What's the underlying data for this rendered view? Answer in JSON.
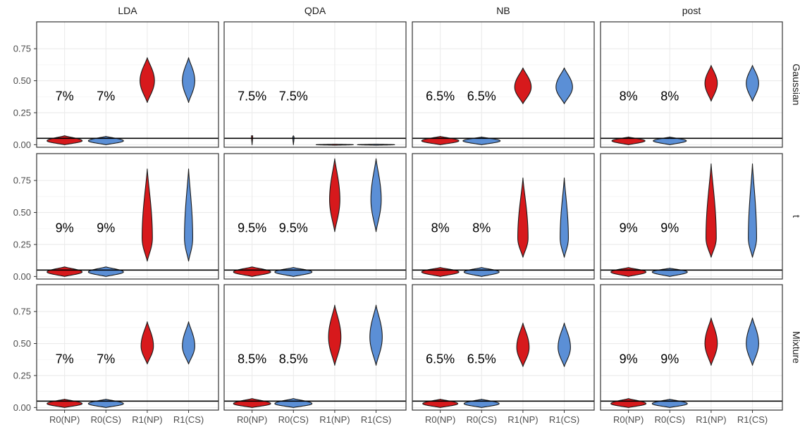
{
  "chart_data": {
    "type": "violin",
    "facet_columns": [
      "LDA",
      "QDA",
      "NB",
      "post"
    ],
    "facet_rows": [
      "Gaussian",
      "t",
      "Mixture"
    ],
    "categories": [
      "R0(NP)",
      "R0(CS)",
      "R1(NP)",
      "R1(CS)"
    ],
    "y_ticks": [
      "0.00",
      "0.25",
      "0.50",
      "0.75"
    ],
    "y_tick_values": [
      0,
      0.25,
      0.5,
      0.75
    ],
    "ylim": [
      -0.02,
      0.96
    ],
    "reference_line": 0.05,
    "grid": true,
    "colors": {
      "NP": "#d7191c",
      "CS": "#5b8fd6",
      "outline": "#1a1a1a",
      "grid": "#ebebeb",
      "panel_border": "#333333"
    },
    "violins": [
      [
        [
          {
            "min": 0.0,
            "max": 0.07,
            "mode": 0.03,
            "width": 0.85
          },
          {
            "min": 0.0,
            "max": 0.065,
            "mode": 0.03,
            "width": 0.85
          },
          {
            "min": 0.33,
            "max": 0.68,
            "mode": 0.5,
            "width": 0.35
          },
          {
            "min": 0.33,
            "max": 0.68,
            "mode": 0.5,
            "width": 0.3
          }
        ],
        [
          {
            "min": 0.0,
            "max": 0.07,
            "mode": 0.07,
            "width": 0.03
          },
          {
            "min": 0.0,
            "max": 0.07,
            "mode": 0.06,
            "width": 0.03
          },
          {
            "min": -0.004,
            "max": 0.004,
            "mode": 0.0,
            "width": 0.9
          },
          {
            "min": -0.004,
            "max": 0.004,
            "mode": 0.0,
            "width": 0.9
          }
        ],
        [
          {
            "min": 0.0,
            "max": 0.065,
            "mode": 0.03,
            "width": 0.9
          },
          {
            "min": 0.0,
            "max": 0.06,
            "mode": 0.03,
            "width": 0.9
          },
          {
            "min": 0.32,
            "max": 0.6,
            "mode": 0.45,
            "width": 0.4
          },
          {
            "min": 0.32,
            "max": 0.6,
            "mode": 0.45,
            "width": 0.4
          }
        ],
        [
          {
            "min": 0.0,
            "max": 0.06,
            "mode": 0.03,
            "width": 0.8
          },
          {
            "min": 0.0,
            "max": 0.06,
            "mode": 0.03,
            "width": 0.8
          },
          {
            "min": 0.34,
            "max": 0.62,
            "mode": 0.48,
            "width": 0.3
          },
          {
            "min": 0.34,
            "max": 0.62,
            "mode": 0.48,
            "width": 0.3
          }
        ]
      ],
      [
        [
          {
            "min": 0.0,
            "max": 0.075,
            "mode": 0.035,
            "width": 0.85
          },
          {
            "min": 0.0,
            "max": 0.075,
            "mode": 0.035,
            "width": 0.85
          },
          {
            "min": 0.12,
            "max": 0.84,
            "mode": 0.3,
            "width": 0.25
          },
          {
            "min": 0.12,
            "max": 0.84,
            "mode": 0.3,
            "width": 0.2
          }
        ],
        [
          {
            "min": 0.0,
            "max": 0.075,
            "mode": 0.035,
            "width": 0.9
          },
          {
            "min": 0.0,
            "max": 0.07,
            "mode": 0.035,
            "width": 0.9
          },
          {
            "min": 0.35,
            "max": 0.92,
            "mode": 0.6,
            "width": 0.25
          },
          {
            "min": 0.35,
            "max": 0.92,
            "mode": 0.6,
            "width": 0.25
          }
        ],
        [
          {
            "min": 0.0,
            "max": 0.07,
            "mode": 0.035,
            "width": 0.9
          },
          {
            "min": 0.0,
            "max": 0.07,
            "mode": 0.035,
            "width": 0.85
          },
          {
            "min": 0.15,
            "max": 0.77,
            "mode": 0.3,
            "width": 0.25
          },
          {
            "min": 0.15,
            "max": 0.77,
            "mode": 0.3,
            "width": 0.2
          }
        ],
        [
          {
            "min": 0.0,
            "max": 0.07,
            "mode": 0.035,
            "width": 0.85
          },
          {
            "min": 0.0,
            "max": 0.065,
            "mode": 0.035,
            "width": 0.85
          },
          {
            "min": 0.15,
            "max": 0.88,
            "mode": 0.3,
            "width": 0.25
          },
          {
            "min": 0.15,
            "max": 0.88,
            "mode": 0.3,
            "width": 0.2
          }
        ]
      ],
      [
        [
          {
            "min": 0.0,
            "max": 0.065,
            "mode": 0.03,
            "width": 0.85
          },
          {
            "min": 0.0,
            "max": 0.065,
            "mode": 0.03,
            "width": 0.85
          },
          {
            "min": 0.34,
            "max": 0.67,
            "mode": 0.48,
            "width": 0.3
          },
          {
            "min": 0.34,
            "max": 0.67,
            "mode": 0.48,
            "width": 0.3
          }
        ],
        [
          {
            "min": 0.0,
            "max": 0.07,
            "mode": 0.03,
            "width": 0.9
          },
          {
            "min": 0.0,
            "max": 0.07,
            "mode": 0.03,
            "width": 0.9
          },
          {
            "min": 0.33,
            "max": 0.8,
            "mode": 0.55,
            "width": 0.3
          },
          {
            "min": 0.33,
            "max": 0.8,
            "mode": 0.55,
            "width": 0.3
          }
        ],
        [
          {
            "min": 0.0,
            "max": 0.065,
            "mode": 0.03,
            "width": 0.85
          },
          {
            "min": 0.0,
            "max": 0.065,
            "mode": 0.03,
            "width": 0.85
          },
          {
            "min": 0.32,
            "max": 0.66,
            "mode": 0.47,
            "width": 0.3
          },
          {
            "min": 0.32,
            "max": 0.66,
            "mode": 0.47,
            "width": 0.3
          }
        ],
        [
          {
            "min": 0.0,
            "max": 0.07,
            "mode": 0.03,
            "width": 0.85
          },
          {
            "min": 0.0,
            "max": 0.065,
            "mode": 0.03,
            "width": 0.85
          },
          {
            "min": 0.33,
            "max": 0.7,
            "mode": 0.5,
            "width": 0.3
          },
          {
            "min": 0.33,
            "max": 0.7,
            "mode": 0.5,
            "width": 0.3
          }
        ]
      ]
    ],
    "percent_labels": [
      [
        [
          "7%",
          "7%"
        ],
        [
          "7.5%",
          "7.5%"
        ],
        [
          "6.5%",
          "6.5%"
        ],
        [
          "8%",
          "8%"
        ]
      ],
      [
        [
          "9%",
          "9%"
        ],
        [
          "9.5%",
          "9.5%"
        ],
        [
          "8%",
          "8%"
        ],
        [
          "9%",
          "9%"
        ]
      ],
      [
        [
          "7%",
          "7%"
        ],
        [
          "8.5%",
          "8.5%"
        ],
        [
          "6.5%",
          "6.5%"
        ],
        [
          "9%",
          "9%"
        ]
      ]
    ],
    "percent_label_y": 0.38
  }
}
